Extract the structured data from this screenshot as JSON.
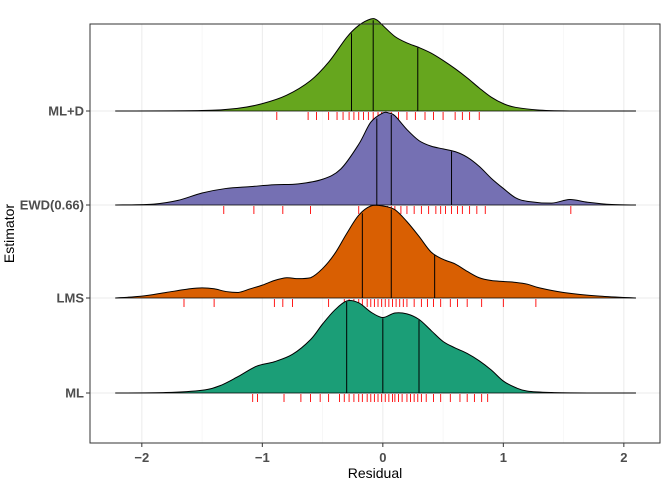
{
  "chart_data": {
    "type": "area",
    "subtype": "ridgeline-density",
    "xlabel": "Residual",
    "ylabel": "Estimator",
    "xlim": [
      -2.43,
      2.3
    ],
    "x_ticks": [
      -2,
      -1,
      0,
      1,
      2
    ],
    "x_tick_labels": [
      "−2",
      "−1",
      "0",
      "1",
      "2"
    ],
    "grid": true,
    "legend": "none",
    "quantile_lines": [
      0.25,
      0.5,
      0.75
    ],
    "rug_color": "#ff0000",
    "series": [
      {
        "name": "ML",
        "color": "#1b9e77",
        "density_x": [
          -2.22,
          -1.8,
          -1.5,
          -1.35,
          -1.2,
          -1.05,
          -0.9,
          -0.75,
          -0.6,
          -0.5,
          -0.4,
          -0.3,
          -0.2,
          -0.1,
          0.0,
          0.1,
          0.2,
          0.3,
          0.4,
          0.5,
          0.6,
          0.7,
          0.8,
          0.9,
          1.0,
          1.1,
          1.2,
          1.4,
          1.7,
          2.1
        ],
        "density_y": [
          0.0,
          0.005,
          0.03,
          0.08,
          0.18,
          0.29,
          0.34,
          0.42,
          0.58,
          0.75,
          0.9,
          1.0,
          0.98,
          0.88,
          0.82,
          0.87,
          0.86,
          0.8,
          0.68,
          0.56,
          0.49,
          0.43,
          0.35,
          0.25,
          0.13,
          0.06,
          0.02,
          0.005,
          0.0,
          0.0
        ],
        "quantiles": [
          -0.3,
          0.0,
          0.3
        ],
        "rug": [
          -1.08,
          -1.04,
          -0.82,
          -0.68,
          -0.6,
          -0.52,
          -0.45,
          -0.36,
          -0.32,
          -0.28,
          -0.24,
          -0.2,
          -0.17,
          -0.13,
          -0.1,
          -0.07,
          -0.04,
          -0.01,
          0.02,
          0.05,
          0.08,
          0.1,
          0.13,
          0.16,
          0.2,
          0.23,
          0.26,
          0.29,
          0.32,
          0.36,
          0.42,
          0.48,
          0.56,
          0.64,
          0.7,
          0.76,
          0.82,
          0.87
        ]
      },
      {
        "name": "LMS",
        "color": "#d95f02",
        "density_x": [
          -2.22,
          -2.0,
          -1.8,
          -1.6,
          -1.5,
          -1.4,
          -1.3,
          -1.2,
          -1.1,
          -1.0,
          -0.9,
          -0.8,
          -0.7,
          -0.6,
          -0.5,
          -0.4,
          -0.3,
          -0.2,
          -0.1,
          0.0,
          0.1,
          0.2,
          0.3,
          0.4,
          0.5,
          0.6,
          0.7,
          0.8,
          0.9,
          1.0,
          1.1,
          1.2,
          1.3,
          1.5,
          1.8,
          2.1
        ],
        "density_y": [
          0.0,
          0.02,
          0.06,
          0.1,
          0.11,
          0.1,
          0.07,
          0.06,
          0.1,
          0.14,
          0.19,
          0.22,
          0.21,
          0.22,
          0.32,
          0.48,
          0.7,
          0.9,
          1.0,
          1.0,
          0.96,
          0.83,
          0.67,
          0.5,
          0.42,
          0.37,
          0.29,
          0.22,
          0.19,
          0.18,
          0.17,
          0.15,
          0.11,
          0.06,
          0.02,
          0.0
        ],
        "quantiles": [
          -0.17,
          0.07,
          0.43
        ],
        "rug": [
          -1.65,
          -1.4,
          -0.9,
          -0.83,
          -0.75,
          -0.45,
          -0.32,
          -0.28,
          -0.24,
          -0.2,
          -0.17,
          -0.13,
          -0.1,
          -0.07,
          -0.04,
          -0.01,
          0.02,
          0.05,
          0.08,
          0.11,
          0.14,
          0.17,
          0.2,
          0.26,
          0.32,
          0.37,
          0.42,
          0.48,
          0.56,
          0.62,
          0.7,
          0.82,
          1.0,
          1.27
        ]
      },
      {
        "name": "EWD(0.66)",
        "color": "#7570b3",
        "density_x": [
          -2.22,
          -1.9,
          -1.7,
          -1.5,
          -1.3,
          -1.1,
          -0.9,
          -0.7,
          -0.5,
          -0.35,
          -0.2,
          -0.1,
          0.0,
          0.05,
          0.1,
          0.2,
          0.3,
          0.4,
          0.5,
          0.6,
          0.7,
          0.8,
          0.9,
          1.0,
          1.1,
          1.2,
          1.4,
          1.55,
          1.7,
          1.9,
          2.1
        ],
        "density_y": [
          0.0,
          0.01,
          0.05,
          0.13,
          0.18,
          0.2,
          0.22,
          0.23,
          0.28,
          0.39,
          0.66,
          0.9,
          1.0,
          1.0,
          0.97,
          0.82,
          0.7,
          0.64,
          0.61,
          0.58,
          0.52,
          0.42,
          0.29,
          0.18,
          0.08,
          0.04,
          0.02,
          0.06,
          0.03,
          0.005,
          0.0
        ],
        "quantiles": [
          -0.05,
          0.07,
          0.57
        ],
        "rug": [
          -1.32,
          -1.07,
          -0.83,
          -0.6,
          -0.2,
          -0.08,
          -0.05,
          -0.02,
          0.01,
          0.04,
          0.07,
          0.1,
          0.15,
          0.2,
          0.26,
          0.32,
          0.38,
          0.44,
          0.48,
          0.52,
          0.57,
          0.62,
          0.66,
          0.72,
          0.78,
          0.85,
          1.56
        ]
      },
      {
        "name": "ML+D",
        "color": "#66a61e",
        "density_x": [
          -2.22,
          -1.5,
          -1.2,
          -1.0,
          -0.8,
          -0.6,
          -0.45,
          -0.3,
          -0.2,
          -0.1,
          -0.05,
          0.0,
          0.1,
          0.2,
          0.3,
          0.4,
          0.5,
          0.6,
          0.7,
          0.8,
          0.9,
          1.0,
          1.1,
          1.3,
          1.6,
          2.1
        ],
        "density_y": [
          0.0,
          0.005,
          0.03,
          0.08,
          0.17,
          0.33,
          0.53,
          0.8,
          0.93,
          1.0,
          0.99,
          0.93,
          0.81,
          0.74,
          0.69,
          0.63,
          0.55,
          0.46,
          0.36,
          0.25,
          0.15,
          0.08,
          0.04,
          0.01,
          0.0,
          0.0
        ],
        "quantiles": [
          -0.26,
          -0.08,
          0.29
        ],
        "rug": [
          -0.88,
          -0.62,
          -0.55,
          -0.45,
          -0.38,
          -0.33,
          -0.28,
          -0.24,
          -0.2,
          -0.16,
          -0.12,
          -0.08,
          -0.04,
          -0.01,
          0.03,
          0.07,
          0.13,
          0.2,
          0.27,
          0.35,
          0.42,
          0.5,
          0.6,
          0.66,
          0.72,
          0.8
        ]
      }
    ]
  }
}
